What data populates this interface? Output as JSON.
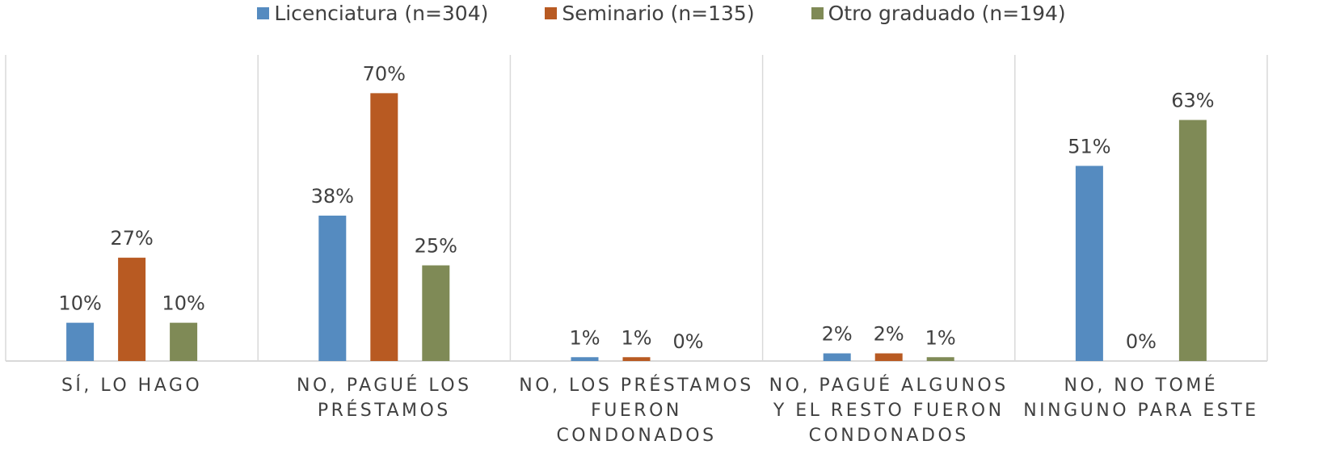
{
  "chart_data": {
    "type": "bar",
    "categories": [
      "SÍ, LO HAGO",
      "NO, PAGUÉ LOS PRÉSTAMOS",
      "NO, LOS PRÉSTAMOS FUERON CONDONADOS",
      "NO, PAGUÉ ALGUNOS Y EL RESTO FUERON CONDONADOS",
      "NO, NO TOMÉ NINGUNO PARA ESTE"
    ],
    "series": [
      {
        "name": "Licenciatura (n=304)",
        "color": "#558bc0",
        "values": [
          10,
          38,
          1,
          2,
          51
        ],
        "value_labels": [
          "10%",
          "38%",
          "1%",
          "2%",
          "51%"
        ]
      },
      {
        "name": "Seminario (n=135)",
        "color": "#b85a22",
        "values": [
          27,
          70,
          1,
          2,
          0
        ],
        "value_labels": [
          "27%",
          "70%",
          "1%",
          "2%",
          "0%"
        ]
      },
      {
        "name": "Otro graduado (n=194)",
        "color": "#7f8a56",
        "values": [
          10,
          25,
          0,
          1,
          63
        ],
        "value_labels": [
          "10%",
          "25%",
          "0%",
          "1%",
          "63%"
        ]
      }
    ],
    "ylim": [
      0,
      80
    ],
    "legend": "top"
  }
}
